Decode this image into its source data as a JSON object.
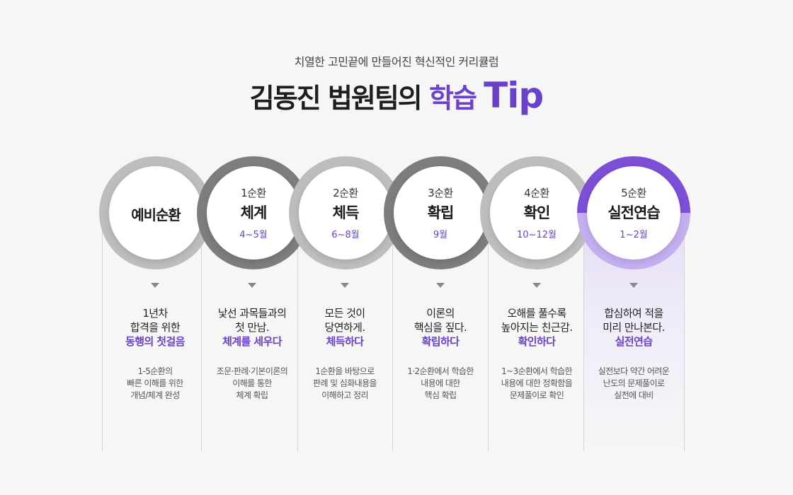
{
  "header": {
    "subtitle": "치열한 고민끝에 만들어진 혁신적인 커리큘럼",
    "title_main": "김동진 법원팀의 ",
    "title_accent": "학습",
    "title_tip": "Tip"
  },
  "stages": [
    {
      "round": "",
      "name": "예비순환",
      "months": "",
      "head_lines": [
        "1년차",
        "합격을 위한"
      ],
      "head_em": "동행의 첫걸음",
      "desc_lines": [
        "1-5순환의",
        "빠른 이해를 위한",
        "개념/체계 완성"
      ]
    },
    {
      "round": "1순환",
      "name": "체계",
      "months": "4~5월",
      "head_lines": [
        "낯선 과목들과의",
        "첫 만남."
      ],
      "head_em": "체계를 세우다",
      "desc_lines": [
        "조문·판례·기본이론의",
        "이해를 통한",
        "체계 확립"
      ]
    },
    {
      "round": "2순환",
      "name": "체득",
      "months": "6~8월",
      "head_lines": [
        "모든 것이",
        "당연하게."
      ],
      "head_em": "체득하다",
      "desc_lines": [
        "1순환을 바탕으로",
        "판례 및 심화내용을",
        "이해하고 정리"
      ]
    },
    {
      "round": "3순환",
      "name": "확립",
      "months": "9월",
      "head_lines": [
        "이론의",
        "핵심을 짚다."
      ],
      "head_em": "확립하다",
      "desc_lines": [
        "1·2순환에서 학습한",
        "내용에 대한",
        "핵심 확립"
      ]
    },
    {
      "round": "4순환",
      "name": "확인",
      "months": "10~12월",
      "head_lines": [
        "오해를 풀수록",
        "높아지는 친근감."
      ],
      "head_em": "확인하다",
      "desc_lines": [
        "1~3순환에서 학습한",
        "내용에 대한 정확함을",
        "문제풀이로 확인"
      ]
    },
    {
      "round": "5순환",
      "name": "실전연습",
      "months": "1~2월",
      "head_lines": [
        "합심하여 적을",
        "미리 만나본다."
      ],
      "head_em": "실전연습",
      "desc_lines": [
        "실전보다 약간 어려운",
        "난도의 문제풀이로",
        "실전에 대비"
      ]
    }
  ],
  "colors": {
    "accent": "#6a41c9",
    "ring_light": "#bdbdbd",
    "ring_dark": "#7d7d7d",
    "ring_purple": "#7b4fd6"
  }
}
